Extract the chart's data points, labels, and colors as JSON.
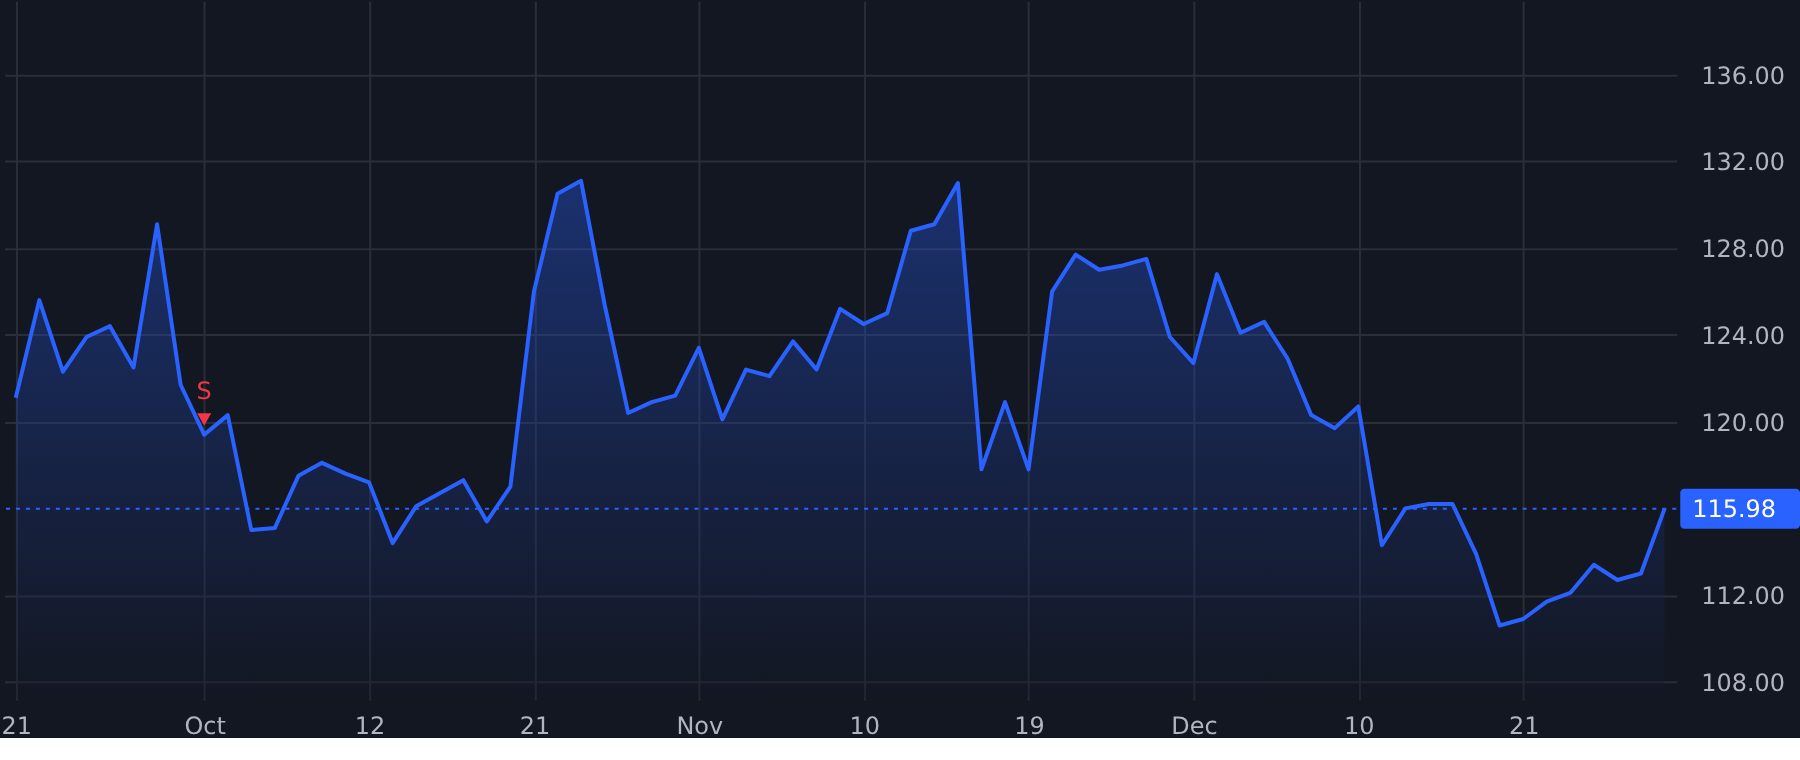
{
  "chart_data": {
    "type": "area",
    "categories": [
      "21",
      null,
      null,
      null,
      null,
      null,
      null,
      null,
      "Oct",
      null,
      null,
      null,
      null,
      null,
      null,
      "12",
      null,
      null,
      null,
      null,
      null,
      null,
      "21",
      null,
      null,
      null,
      null,
      null,
      null,
      "Nov",
      null,
      null,
      null,
      null,
      null,
      null,
      "10",
      null,
      null,
      null,
      null,
      null,
      null,
      "19",
      null,
      null,
      null,
      null,
      null,
      null,
      "Dec",
      null,
      null,
      null,
      null,
      null,
      null,
      "10",
      null,
      null,
      null,
      null,
      null,
      null,
      "21",
      null,
      null,
      null,
      null,
      null,
      null
    ],
    "series": [
      {
        "color": "#2962ff",
        "values": [
          121.1,
          125.6,
          122.3,
          123.9,
          124.4,
          122.5,
          129.1,
          121.7,
          119.4,
          120.3,
          115.0,
          115.1,
          117.5,
          118.1,
          117.6,
          117.2,
          114.4,
          116.1,
          116.7,
          117.3,
          115.4,
          117.0,
          126.0,
          130.5,
          131.1,
          125.4,
          120.4,
          120.9,
          121.2,
          123.4,
          120.1,
          122.4,
          122.1,
          123.7,
          122.4,
          125.2,
          124.5,
          125.0,
          128.8,
          129.1,
          131.0,
          117.8,
          120.9,
          117.8,
          126.0,
          127.7,
          127.0,
          127.2,
          127.5,
          123.9,
          122.7,
          126.8,
          124.1,
          124.6,
          122.9,
          120.3,
          119.7,
          120.7,
          114.3,
          116.0,
          116.2,
          116.2,
          113.9,
          110.6,
          110.9,
          111.7,
          112.1,
          113.4,
          112.7,
          113.0,
          115.98
        ]
      }
    ],
    "ylim": [
      107.2,
      139.4
    ],
    "yticks": [
      {
        "value": 108,
        "label": "108.00"
      },
      {
        "value": 112,
        "label": "112.00"
      },
      {
        "value": 120,
        "label": "120.00"
      },
      {
        "value": 124,
        "label": "124.00"
      },
      {
        "value": 128,
        "label": "128.00"
      },
      {
        "value": 132,
        "label": "132.00"
      },
      {
        "value": 136,
        "label": "136.00"
      }
    ],
    "ref_lines": [
      {
        "axis": "y",
        "value": 115.98,
        "label": "115.98",
        "color": "#2962ff",
        "line_style": "dotted"
      }
    ],
    "annotations": [
      {
        "text": "S",
        "x": "Oct",
        "y": 120.1
      }
    ],
    "grid": true,
    "line_style": "solid"
  }
}
